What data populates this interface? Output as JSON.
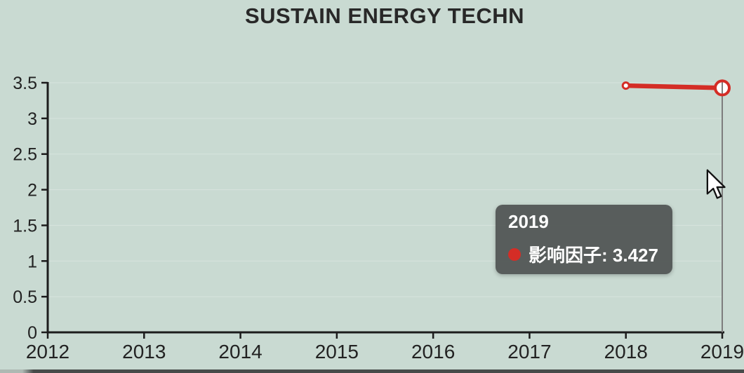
{
  "title": "SUSTAIN ENERGY TECHN",
  "tooltip": {
    "title": "2019",
    "text": "影响因子: 3.427",
    "series_label": "影响因子",
    "value": "3.427"
  },
  "colors": {
    "background": "#c9dad2",
    "line": "#d42d26",
    "axis": "#1c1c1c",
    "tick_label": "#222222",
    "gridline": "rgba(255,255,255,0.28)",
    "crosshair": "#7d7d7d",
    "tooltip_bg": "#545958",
    "tooltip_text": "#ffffff",
    "title_color": "#282828",
    "bottom_bar": "#474b4a"
  },
  "chart_data": {
    "type": "line",
    "title": "SUSTAIN ENERGY TECHN",
    "xlabel": "",
    "ylabel": "",
    "x": [
      2018,
      2019
    ],
    "series": [
      {
        "name": "影响因子",
        "values": [
          3.46,
          3.427
        ]
      }
    ],
    "xticks": [
      2012,
      2013,
      2014,
      2015,
      2016,
      2017,
      2018,
      2019
    ],
    "yticks": [
      0,
      0.5,
      1,
      1.5,
      2,
      2.5,
      3,
      3.5
    ],
    "xlim": [
      2012,
      2019
    ],
    "ylim": [
      0,
      3.5
    ],
    "grid": false,
    "legend": false,
    "highlight": {
      "x": 2019,
      "y": 3.427,
      "label": "影响因子: 3.427"
    }
  }
}
